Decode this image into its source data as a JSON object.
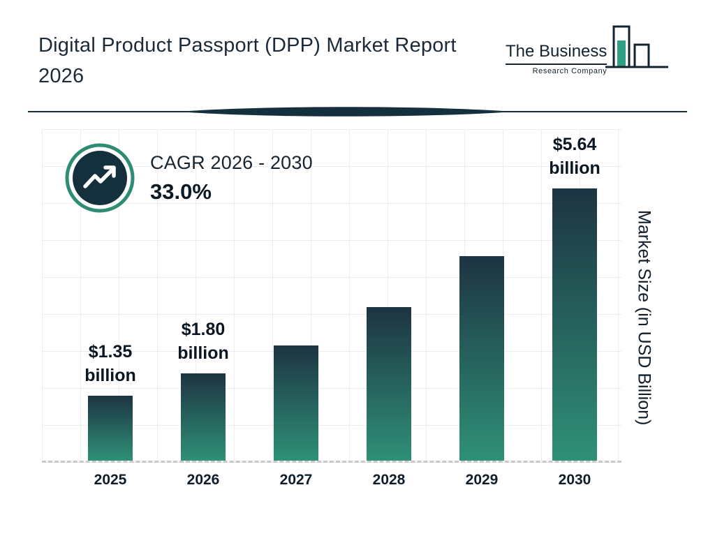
{
  "header": {
    "title": "Digital Product Passport (DPP) Market Report 2026",
    "logo": {
      "line1": "The Business",
      "line2": "Research Company",
      "icon": "bar-chart-logo-icon"
    }
  },
  "cagr": {
    "icon": "trending-up-icon",
    "label": "CAGR 2026 - 2030",
    "value": "33.0%"
  },
  "chart_data": {
    "type": "bar",
    "title": "Digital Product Passport (DPP) Market Report 2026",
    "categories": [
      "2025",
      "2026",
      "2027",
      "2028",
      "2029",
      "2030"
    ],
    "values": [
      1.35,
      1.8,
      2.39,
      3.18,
      4.24,
      5.64
    ],
    "value_labels": [
      "$1.35\nbillion",
      "$1.80\nbillion",
      "",
      "",
      "",
      "$5.64\nbillion"
    ],
    "xlabel": "",
    "ylabel": "Market Size (in USD Billion)",
    "ylim": [
      0,
      6
    ],
    "grid": true,
    "legend": false,
    "colors": {
      "bar_gradient_top": "#1d3442",
      "bar_gradient_bottom": "#2f9077",
      "accent_teal": "#2e8b74",
      "dark_navy": "#14303d",
      "text_dark": "#1c2a38"
    }
  }
}
